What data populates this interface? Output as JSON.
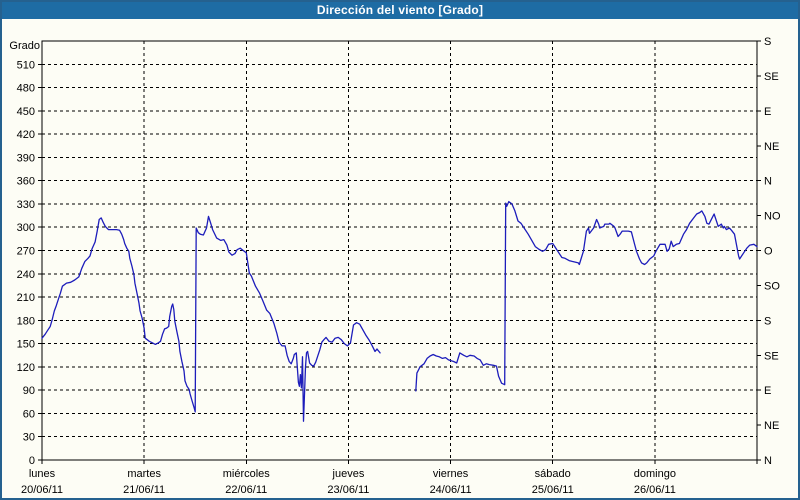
{
  "window": {
    "title": "Dirección del viento [Grado]"
  },
  "colors": {
    "titlebar_bg": "#1e6ca4",
    "titlebar_text": "#ffffff",
    "frame_border": "#25618f",
    "plot_background": "#fdfdf5",
    "grid": "#000000",
    "series_line": "#1d1dbb"
  },
  "chart_data": {
    "type": "line",
    "title": "Dirección del viento [Grado]",
    "ylabel_left": "Grado",
    "y_left_range": [
      0,
      540
    ],
    "y_left_ticks": [
      0,
      30,
      60,
      90,
      120,
      150,
      180,
      210,
      240,
      270,
      300,
      330,
      360,
      390,
      420,
      450,
      480,
      510
    ],
    "y_right_ticks": [
      {
        "deg": 0,
        "label": "N"
      },
      {
        "deg": 45,
        "label": "NE"
      },
      {
        "deg": 90,
        "label": "E"
      },
      {
        "deg": 135,
        "label": "SE"
      },
      {
        "deg": 180,
        "label": "S"
      },
      {
        "deg": 225,
        "label": "SO"
      },
      {
        "deg": 270,
        "label": "O"
      },
      {
        "deg": 315,
        "label": "NO"
      },
      {
        "deg": 360,
        "label": "N"
      },
      {
        "deg": 405,
        "label": "NE"
      },
      {
        "deg": 450,
        "label": "E"
      },
      {
        "deg": 495,
        "label": "SE"
      },
      {
        "deg": 540,
        "label": "S"
      }
    ],
    "x_days": [
      {
        "name": "lunes",
        "date": "20/06/11"
      },
      {
        "name": "martes",
        "date": "21/06/11"
      },
      {
        "name": "miércoles",
        "date": "22/06/11"
      },
      {
        "name": "jueves",
        "date": "23/06/11"
      },
      {
        "name": "viernes",
        "date": "24/06/11"
      },
      {
        "name": "sábado",
        "date": "25/06/11"
      },
      {
        "name": "domingo",
        "date": "26/06/11"
      }
    ],
    "grid": "dashed",
    "series": [
      {
        "name": "Dirección del viento",
        "color": "#1d1dbb",
        "segments": [
          [
            [
              0,
              157
            ],
            [
              0.03,
              162
            ],
            [
              0.05,
              166
            ],
            [
              0.08,
              172
            ],
            [
              0.1,
              181
            ],
            [
              0.12,
              192
            ],
            [
              0.14,
              199
            ],
            [
              0.16,
              207
            ],
            [
              0.18,
              215
            ],
            [
              0.2,
              224
            ],
            [
              0.24,
              228
            ],
            [
              0.28,
              229
            ],
            [
              0.32,
              232
            ],
            [
              0.36,
              236
            ],
            [
              0.39,
              247
            ],
            [
              0.42,
              256
            ],
            [
              0.45,
              260
            ],
            [
              0.47,
              263
            ],
            [
              0.49,
              272
            ],
            [
              0.52,
              281
            ],
            [
              0.54,
              295
            ],
            [
              0.56,
              310
            ],
            [
              0.58,
              312
            ],
            [
              0.6,
              306
            ],
            [
              0.62,
              301
            ],
            [
              0.65,
              297
            ],
            [
              0.69,
              297
            ],
            [
              0.73,
              297
            ],
            [
              0.76,
              296
            ],
            [
              0.78,
              291
            ],
            [
              0.8,
              284
            ],
            [
              0.81,
              279
            ],
            [
              0.83,
              273
            ],
            [
              0.85,
              269
            ],
            [
              0.86,
              260
            ],
            [
              0.88,
              250
            ],
            [
              0.9,
              239
            ],
            [
              0.91,
              228
            ],
            [
              0.93,
              215
            ],
            [
              0.95,
              202
            ],
            [
              0.96,
              192
            ],
            [
              0.98,
              183
            ],
            [
              1,
              170
            ],
            [
              1.01,
              157
            ],
            [
              1.05,
              153
            ],
            [
              1.08,
              151
            ],
            [
              1.11,
              149
            ],
            [
              1.14,
              151
            ],
            [
              1.16,
              153
            ],
            [
              1.18,
              162
            ],
            [
              1.2,
              169
            ],
            [
              1.22,
              170
            ],
            [
              1.24,
              172
            ],
            [
              1.25,
              185
            ],
            [
              1.27,
              198
            ],
            [
              1.28,
              201
            ],
            [
              1.29,
              194
            ],
            [
              1.3,
              179
            ],
            [
              1.32,
              166
            ],
            [
              1.34,
              153
            ],
            [
              1.35,
              140
            ],
            [
              1.37,
              127
            ],
            [
              1.39,
              115
            ],
            [
              1.4,
              102
            ],
            [
              1.42,
              95
            ],
            [
              1.44,
              91
            ],
            [
              1.45,
              85
            ],
            [
              1.47,
              76
            ],
            [
              1.49,
              67
            ],
            [
              1.5,
              62
            ],
            [
              1.51,
              299
            ],
            [
              1.53,
              293
            ],
            [
              1.55,
              291
            ],
            [
              1.58,
              290
            ],
            [
              1.61,
              299
            ],
            [
              1.63,
              314
            ],
            [
              1.65,
              306
            ],
            [
              1.67,
              297
            ],
            [
              1.71,
              286
            ],
            [
              1.75,
              283
            ],
            [
              1.78,
              284
            ],
            [
              1.81,
              277
            ],
            [
              1.83,
              268
            ],
            [
              1.86,
              264
            ],
            [
              1.89,
              266
            ],
            [
              1.91,
              271
            ],
            [
              1.94,
              273
            ],
            [
              1.97,
              270
            ],
            [
              2,
              267
            ],
            [
              2.03,
              241
            ],
            [
              2.05,
              237
            ],
            [
              2.09,
              224
            ],
            [
              2.13,
              215
            ],
            [
              2.16,
              206
            ],
            [
              2.2,
              193
            ],
            [
              2.23,
              189
            ],
            [
              2.27,
              176
            ],
            [
              2.3,
              163
            ],
            [
              2.32,
              152
            ],
            [
              2.35,
              147
            ],
            [
              2.38,
              147
            ],
            [
              2.4,
              135
            ],
            [
              2.42,
              127
            ],
            [
              2.44,
              124
            ],
            [
              2.46,
              131
            ],
            [
              2.47,
              136
            ],
            [
              2.49,
              138
            ],
            [
              2.51,
              100
            ],
            [
              2.52,
              95
            ],
            [
              2.53,
              110
            ],
            [
              2.54,
              93
            ],
            [
              2.55,
              133
            ],
            [
              2.56,
              50
            ],
            [
              2.58,
              120
            ],
            [
              2.59,
              138
            ],
            [
              2.6,
              140
            ],
            [
              2.62,
              125
            ],
            [
              2.64,
              122
            ],
            [
              2.66,
              121
            ],
            [
              2.68,
              126
            ],
            [
              2.72,
              142
            ],
            [
              2.74,
              152
            ],
            [
              2.76,
              155
            ],
            [
              2.78,
              158
            ],
            [
              2.81,
              153
            ],
            [
              2.84,
              152
            ],
            [
              2.87,
              157
            ],
            [
              2.9,
              158
            ],
            [
              2.93,
              155
            ],
            [
              2.96,
              150
            ],
            [
              2.99,
              147
            ],
            [
              3.02,
              151
            ],
            [
              3.05,
              174
            ],
            [
              3.08,
              177
            ],
            [
              3.11,
              175
            ],
            [
              3.14,
              168
            ],
            [
              3.17,
              161
            ],
            [
              3.2,
              155
            ],
            [
              3.23,
              148
            ],
            [
              3.26,
              140
            ],
            [
              3.28,
              143
            ],
            [
              3.31,
              138
            ]
          ],
          [
            [
              3.66,
              89
            ],
            [
              3.67,
              112
            ],
            [
              3.69,
              117
            ],
            [
              3.7,
              120
            ],
            [
              3.74,
              124
            ],
            [
              3.77,
              131
            ],
            [
              3.8,
              134
            ],
            [
              3.83,
              136
            ],
            [
              3.86,
              134
            ],
            [
              3.89,
              133
            ],
            [
              3.92,
              131
            ],
            [
              3.95,
              132
            ],
            [
              3.98,
              129
            ],
            [
              4.03,
              127
            ],
            [
              4.06,
              125
            ],
            [
              4.09,
              138
            ],
            [
              4.13,
              135
            ],
            [
              4.16,
              133
            ],
            [
              4.19,
              135
            ],
            [
              4.23,
              134
            ],
            [
              4.26,
              131
            ],
            [
              4.29,
              129
            ],
            [
              4.32,
              122
            ],
            [
              4.35,
              124
            ],
            [
              4.38,
              123
            ],
            [
              4.42,
              122
            ],
            [
              4.45,
              121
            ],
            [
              4.47,
              108
            ],
            [
              4.5,
              99
            ],
            [
              4.53,
              97
            ],
            [
              4.54,
              331
            ],
            [
              4.55,
              327
            ],
            [
              4.57,
              333
            ],
            [
              4.6,
              330
            ],
            [
              4.63,
              321
            ],
            [
              4.66,
              308
            ],
            [
              4.69,
              305
            ],
            [
              4.72,
              299
            ],
            [
              4.76,
              291
            ],
            [
              4.79,
              284
            ],
            [
              4.83,
              275
            ],
            [
              4.86,
              272
            ],
            [
              4.9,
              269
            ],
            [
              4.93,
              271
            ],
            [
              4.96,
              278
            ],
            [
              5,
              279
            ],
            [
              5.02,
              275
            ],
            [
              5.06,
              267
            ],
            [
              5.09,
              261
            ],
            [
              5.12,
              260
            ],
            [
              5.16,
              257
            ],
            [
              5.19,
              256
            ],
            [
              5.22,
              255
            ],
            [
              5.25,
              254
            ],
            [
              5.26,
              252
            ],
            [
              5.3,
              269
            ],
            [
              5.33,
              295
            ],
            [
              5.35,
              299
            ],
            [
              5.36,
              292
            ],
            [
              5.4,
              299
            ],
            [
              5.43,
              310
            ],
            [
              5.45,
              304
            ],
            [
              5.46,
              299
            ],
            [
              5.5,
              301
            ],
            [
              5.51,
              304
            ],
            [
              5.55,
              304
            ],
            [
              5.56,
              305
            ],
            [
              5.6,
              301
            ],
            [
              5.61,
              299
            ],
            [
              5.64,
              288
            ],
            [
              5.66,
              291
            ],
            [
              5.68,
              295
            ],
            [
              5.7,
              295
            ],
            [
              5.74,
              295
            ],
            [
              5.77,
              294
            ],
            [
              5.8,
              279
            ],
            [
              5.82,
              269
            ],
            [
              5.85,
              259
            ],
            [
              5.87,
              254
            ],
            [
              5.9,
              252
            ],
            [
              5.92,
              254
            ],
            [
              5.95,
              259
            ],
            [
              5.99,
              263
            ],
            [
              6.01,
              269
            ],
            [
              6.05,
              278
            ],
            [
              6.07,
              278
            ],
            [
              6.1,
              278
            ],
            [
              6.12,
              269
            ],
            [
              6.14,
              272
            ],
            [
              6.16,
              282
            ],
            [
              6.18,
              275
            ],
            [
              6.21,
              278
            ],
            [
              6.24,
              279
            ],
            [
              6.28,
              291
            ],
            [
              6.31,
              297
            ],
            [
              6.34,
              305
            ],
            [
              6.38,
              312
            ],
            [
              6.41,
              317
            ],
            [
              6.44,
              319
            ],
            [
              6.46,
              321
            ],
            [
              6.49,
              314
            ],
            [
              6.51,
              305
            ],
            [
              6.53,
              304
            ],
            [
              6.56,
              312
            ],
            [
              6.58,
              317
            ],
            [
              6.61,
              305
            ],
            [
              6.62,
              301
            ],
            [
              6.65,
              304
            ],
            [
              6.67,
              299
            ],
            [
              6.68,
              301
            ],
            [
              6.7,
              297
            ],
            [
              6.73,
              299
            ],
            [
              6.75,
              296
            ],
            [
              6.78,
              291
            ],
            [
              6.82,
              263
            ],
            [
              6.83,
              259
            ],
            [
              6.87,
              267
            ],
            [
              6.9,
              273
            ],
            [
              6.93,
              277
            ],
            [
              6.97,
              278
            ],
            [
              7,
              275
            ]
          ]
        ]
      }
    ]
  }
}
